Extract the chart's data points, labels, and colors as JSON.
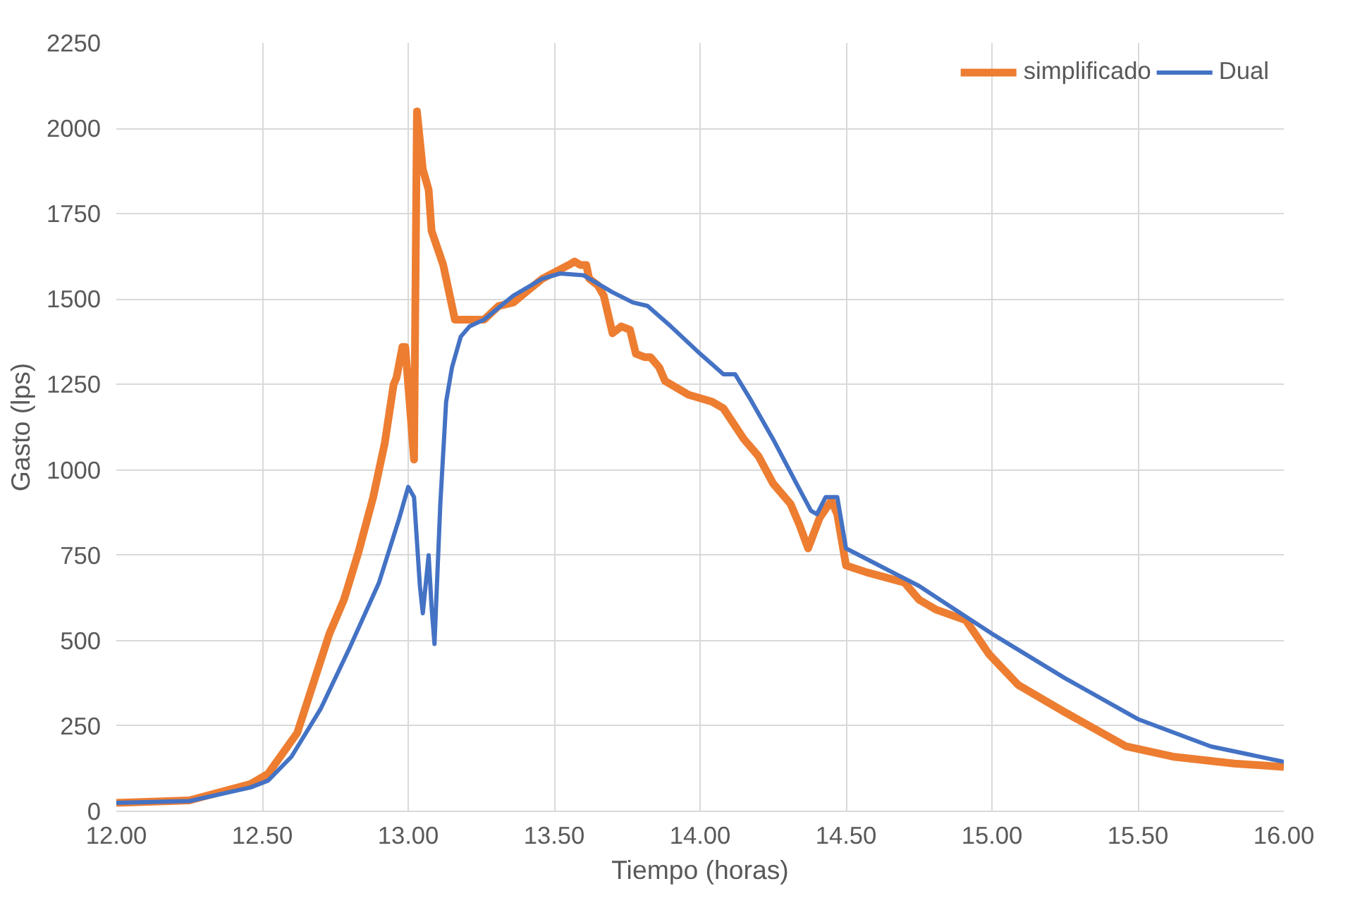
{
  "chart_data": {
    "type": "line",
    "xlabel": "Tiempo (horas)",
    "ylabel": "Gasto (lps)",
    "xlim": [
      12,
      16
    ],
    "ylim": [
      0,
      2250
    ],
    "xticks": [
      {
        "value": 12,
        "label": "12.00"
      },
      {
        "value": 12.5,
        "label": "12.50"
      },
      {
        "value": 13,
        "label": "13.00"
      },
      {
        "value": 13.5,
        "label": "13.50"
      },
      {
        "value": 14,
        "label": "14.00"
      },
      {
        "value": 14.5,
        "label": "14.50"
      },
      {
        "value": 15,
        "label": "15.00"
      },
      {
        "value": 15.5,
        "label": "15.50"
      },
      {
        "value": 16,
        "label": "16.00"
      }
    ],
    "yticks": [
      0,
      250,
      500,
      750,
      1000,
      1250,
      1500,
      1750,
      2000,
      2250
    ],
    "grid": true,
    "legend": "top right",
    "marker": "none",
    "line_style": "solid",
    "series": [
      {
        "name": "simplificado",
        "color": "#ed7d31",
        "x": [
          12.0,
          12.25,
          12.46,
          12.52,
          12.62,
          12.73,
          12.78,
          12.83,
          12.88,
          12.92,
          12.95,
          12.96,
          12.98,
          12.99,
          13.02,
          13.03,
          13.05,
          13.07,
          13.08,
          13.12,
          13.16,
          13.23,
          13.26,
          13.31,
          13.36,
          13.46,
          13.55,
          13.57,
          13.59,
          13.61,
          13.62,
          13.65,
          13.67,
          13.7,
          13.73,
          13.76,
          13.78,
          13.81,
          13.83,
          13.86,
          13.88,
          13.96,
          14.04,
          14.08,
          14.15,
          14.2,
          14.25,
          14.31,
          14.34,
          14.37,
          14.41,
          14.45,
          14.47,
          14.5,
          14.57,
          14.7,
          14.75,
          14.81,
          14.91,
          14.99,
          15.09,
          15.25,
          15.46,
          15.62,
          15.83,
          16.0
        ],
        "values": [
          25,
          32,
          80,
          110,
          230,
          520,
          620,
          760,
          920,
          1080,
          1250,
          1270,
          1360,
          1360,
          1030,
          2050,
          1880,
          1820,
          1700,
          1600,
          1440,
          1440,
          1440,
          1480,
          1490,
          1560,
          1600,
          1610,
          1600,
          1600,
          1560,
          1540,
          1510,
          1400,
          1420,
          1410,
          1340,
          1330,
          1330,
          1300,
          1260,
          1220,
          1200,
          1180,
          1090,
          1040,
          960,
          900,
          840,
          770,
          860,
          910,
          870,
          720,
          700,
          670,
          620,
          590,
          560,
          460,
          370,
          290,
          190,
          160,
          140,
          130
        ]
      },
      {
        "name": "Dual",
        "color": "#4472c4",
        "x": [
          12.0,
          12.25,
          12.46,
          12.52,
          12.6,
          12.7,
          12.8,
          12.9,
          12.97,
          13.0,
          13.02,
          13.04,
          13.05,
          13.07,
          13.08,
          13.09,
          13.11,
          13.13,
          13.15,
          13.18,
          13.21,
          13.26,
          13.36,
          13.46,
          13.52,
          13.6,
          13.7,
          13.77,
          13.82,
          13.9,
          14.0,
          14.08,
          14.12,
          14.17,
          14.25,
          14.33,
          14.38,
          14.4,
          14.43,
          14.47,
          14.5,
          14.75,
          14.91,
          15.0,
          15.25,
          15.5,
          15.75,
          16.0
        ],
        "values": [
          25,
          30,
          70,
          90,
          160,
          300,
          480,
          670,
          860,
          950,
          920,
          660,
          580,
          750,
          600,
          490,
          900,
          1200,
          1300,
          1390,
          1420,
          1440,
          1510,
          1560,
          1575,
          1570,
          1520,
          1490,
          1480,
          1420,
          1340,
          1280,
          1280,
          1210,
          1090,
          960,
          880,
          870,
          920,
          920,
          770,
          660,
          570,
          520,
          390,
          270,
          190,
          145
        ]
      }
    ]
  }
}
